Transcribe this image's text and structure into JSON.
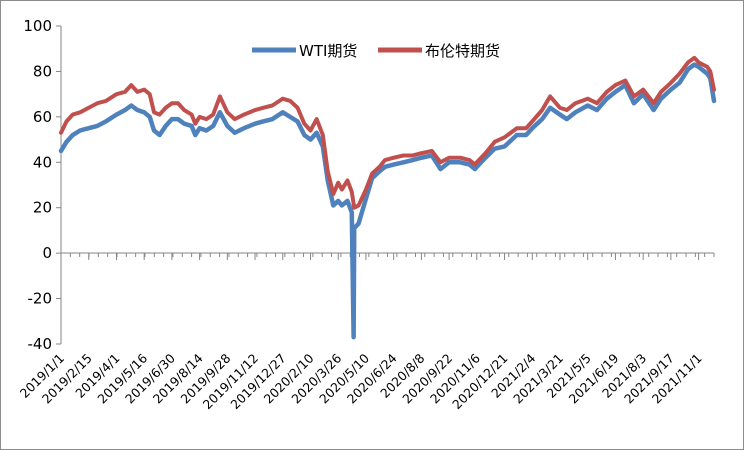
{
  "chart_data": {
    "type": "line",
    "title": "",
    "xlabel": "",
    "ylabel": "",
    "ylim": [
      -40,
      100
    ],
    "yticks": [
      100,
      80,
      60,
      40,
      20,
      0,
      -20,
      -40
    ],
    "ytick_labels": [
      "100",
      "80",
      "60",
      "40",
      "20",
      "0",
      "-20",
      "-40"
    ],
    "x_start": "2019/1/1",
    "x_end": "2021/11/26",
    "xtick_labels": [
      "2019/1/1",
      "2019/2/15",
      "2019/4/1",
      "2019/5/16",
      "2019/6/30",
      "2019/8/14",
      "2019/9/28",
      "2019/11/12",
      "2019/12/27",
      "2020/2/10",
      "2020/3/26",
      "2020/5/10",
      "2020/6/24",
      "2020/8/8",
      "2020/9/22",
      "2020/11/6",
      "2020/12/21",
      "2021/2/4",
      "2021/3/21",
      "2021/5/5",
      "2021/6/19",
      "2021/8/3",
      "2021/9/17",
      "2021/11/1"
    ],
    "grid": false,
    "legend_position": "top",
    "series": [
      {
        "name": "WTI期货",
        "color": "#4f81bd",
        "points": [
          [
            "2019/1/1",
            45
          ],
          [
            "2019/1/10",
            49
          ],
          [
            "2019/1/20",
            52
          ],
          [
            "2019/2/1",
            54
          ],
          [
            "2019/2/15",
            55
          ],
          [
            "2019/3/1",
            56
          ],
          [
            "2019/3/15",
            58
          ],
          [
            "2019/4/1",
            61
          ],
          [
            "2019/4/15",
            63
          ],
          [
            "2019/4/25",
            65
          ],
          [
            "2019/5/5",
            63
          ],
          [
            "2019/5/16",
            62
          ],
          [
            "2019/5/25",
            60
          ],
          [
            "2019/6/1",
            54
          ],
          [
            "2019/6/10",
            52
          ],
          [
            "2019/6/20",
            56
          ],
          [
            "2019/6/30",
            59
          ],
          [
            "2019/7/10",
            59
          ],
          [
            "2019/7/20",
            57
          ],
          [
            "2019/8/1",
            56
          ],
          [
            "2019/8/7",
            52
          ],
          [
            "2019/8/14",
            55
          ],
          [
            "2019/8/25",
            54
          ],
          [
            "2019/9/5",
            56
          ],
          [
            "2019/9/16",
            62
          ],
          [
            "2019/9/28",
            56
          ],
          [
            "2019/10/10",
            53
          ],
          [
            "2019/10/25",
            55
          ],
          [
            "2019/11/12",
            57
          ],
          [
            "2019/11/25",
            58
          ],
          [
            "2019/12/10",
            59
          ],
          [
            "2019/12/27",
            62
          ],
          [
            "2020/1/8",
            60
          ],
          [
            "2020/1/20",
            58
          ],
          [
            "2020/1/31",
            52
          ],
          [
            "2020/2/10",
            50
          ],
          [
            "2020/2/20",
            53
          ],
          [
            "2020/3/1",
            47
          ],
          [
            "2020/3/9",
            32
          ],
          [
            "2020/3/18",
            21
          ],
          [
            "2020/3/26",
            23
          ],
          [
            "2020/4/1",
            21
          ],
          [
            "2020/4/10",
            23
          ],
          [
            "2020/4/17",
            18
          ],
          [
            "2020/4/20",
            -37
          ],
          [
            "2020/4/21",
            11
          ],
          [
            "2020/4/28",
            13
          ],
          [
            "2020/5/10",
            24
          ],
          [
            "2020/5/20",
            33
          ],
          [
            "2020/6/1",
            36
          ],
          [
            "2020/6/10",
            38
          ],
          [
            "2020/6/24",
            39
          ],
          [
            "2020/7/10",
            40
          ],
          [
            "2020/7/25",
            41
          ],
          [
            "2020/8/8",
            42
          ],
          [
            "2020/8/25",
            43
          ],
          [
            "2020/9/8",
            37
          ],
          [
            "2020/9/22",
            40
          ],
          [
            "2020/10/10",
            40
          ],
          [
            "2020/10/25",
            39
          ],
          [
            "2020/11/3",
            37
          ],
          [
            "2020/11/6",
            38
          ],
          [
            "2020/11/20",
            42
          ],
          [
            "2020/12/5",
            46
          ],
          [
            "2020/12/21",
            47
          ],
          [
            "2021/1/10",
            52
          ],
          [
            "2021/1/25",
            52
          ],
          [
            "2021/2/4",
            55
          ],
          [
            "2021/2/20",
            59
          ],
          [
            "2021/3/5",
            64
          ],
          [
            "2021/3/21",
            61
          ],
          [
            "2021/4/1",
            59
          ],
          [
            "2021/4/15",
            62
          ],
          [
            "2021/5/5",
            65
          ],
          [
            "2021/5/20",
            63
          ],
          [
            "2021/6/5",
            68
          ],
          [
            "2021/6/19",
            71
          ],
          [
            "2021/7/5",
            74
          ],
          [
            "2021/7/19",
            66
          ],
          [
            "2021/8/3",
            70
          ],
          [
            "2021/8/20",
            63
          ],
          [
            "2021/9/1",
            68
          ],
          [
            "2021/9/17",
            72
          ],
          [
            "2021/10/1",
            75
          ],
          [
            "2021/10/15",
            81
          ],
          [
            "2021/10/25",
            83
          ],
          [
            "2021/11/1",
            82
          ],
          [
            "2021/11/15",
            79
          ],
          [
            "2021/11/20",
            77
          ],
          [
            "2021/11/26",
            67
          ]
        ]
      },
      {
        "name": "布伦特期货",
        "color": "#c0504d",
        "points": [
          [
            "2019/1/1",
            53
          ],
          [
            "2019/1/10",
            58
          ],
          [
            "2019/1/20",
            61
          ],
          [
            "2019/2/1",
            62
          ],
          [
            "2019/2/15",
            64
          ],
          [
            "2019/3/1",
            66
          ],
          [
            "2019/3/15",
            67
          ],
          [
            "2019/4/1",
            70
          ],
          [
            "2019/4/15",
            71
          ],
          [
            "2019/4/25",
            74
          ],
          [
            "2019/5/5",
            71
          ],
          [
            "2019/5/16",
            72
          ],
          [
            "2019/5/25",
            70
          ],
          [
            "2019/6/1",
            62
          ],
          [
            "2019/6/10",
            61
          ],
          [
            "2019/6/20",
            64
          ],
          [
            "2019/6/30",
            66
          ],
          [
            "2019/7/10",
            66
          ],
          [
            "2019/7/20",
            63
          ],
          [
            "2019/8/1",
            61
          ],
          [
            "2019/8/7",
            57
          ],
          [
            "2019/8/14",
            60
          ],
          [
            "2019/8/25",
            59
          ],
          [
            "2019/9/5",
            61
          ],
          [
            "2019/9/16",
            69
          ],
          [
            "2019/9/28",
            62
          ],
          [
            "2019/10/10",
            59
          ],
          [
            "2019/10/25",
            61
          ],
          [
            "2019/11/12",
            63
          ],
          [
            "2019/11/25",
            64
          ],
          [
            "2019/12/10",
            65
          ],
          [
            "2019/12/27",
            68
          ],
          [
            "2020/1/8",
            67
          ],
          [
            "2020/1/20",
            64
          ],
          [
            "2020/1/31",
            57
          ],
          [
            "2020/2/10",
            54
          ],
          [
            "2020/2/20",
            59
          ],
          [
            "2020/3/1",
            52
          ],
          [
            "2020/3/9",
            36
          ],
          [
            "2020/3/18",
            26
          ],
          [
            "2020/3/26",
            31
          ],
          [
            "2020/4/1",
            28
          ],
          [
            "2020/4/10",
            32
          ],
          [
            "2020/4/17",
            27
          ],
          [
            "2020/4/21",
            20
          ],
          [
            "2020/4/28",
            21
          ],
          [
            "2020/5/10",
            28
          ],
          [
            "2020/5/20",
            35
          ],
          [
            "2020/6/1",
            38
          ],
          [
            "2020/6/10",
            41
          ],
          [
            "2020/6/24",
            42
          ],
          [
            "2020/7/10",
            43
          ],
          [
            "2020/7/25",
            43
          ],
          [
            "2020/8/8",
            44
          ],
          [
            "2020/8/25",
            45
          ],
          [
            "2020/9/8",
            40
          ],
          [
            "2020/9/22",
            42
          ],
          [
            "2020/10/10",
            42
          ],
          [
            "2020/10/25",
            41
          ],
          [
            "2020/11/3",
            39
          ],
          [
            "2020/11/6",
            40
          ],
          [
            "2020/11/20",
            44
          ],
          [
            "2020/12/5",
            49
          ],
          [
            "2020/12/21",
            51
          ],
          [
            "2021/1/10",
            55
          ],
          [
            "2021/1/25",
            55
          ],
          [
            "2021/2/4",
            58
          ],
          [
            "2021/2/20",
            63
          ],
          [
            "2021/3/5",
            69
          ],
          [
            "2021/3/21",
            64
          ],
          [
            "2021/4/1",
            63
          ],
          [
            "2021/4/15",
            66
          ],
          [
            "2021/5/5",
            68
          ],
          [
            "2021/5/20",
            66
          ],
          [
            "2021/6/5",
            71
          ],
          [
            "2021/6/19",
            74
          ],
          [
            "2021/7/5",
            76
          ],
          [
            "2021/7/19",
            69
          ],
          [
            "2021/8/3",
            72
          ],
          [
            "2021/8/20",
            66
          ],
          [
            "2021/9/1",
            71
          ],
          [
            "2021/9/17",
            75
          ],
          [
            "2021/10/1",
            79
          ],
          [
            "2021/10/15",
            84
          ],
          [
            "2021/10/25",
            86
          ],
          [
            "2021/11/1",
            84
          ],
          [
            "2021/11/15",
            82
          ],
          [
            "2021/11/20",
            80
          ],
          [
            "2021/11/26",
            72
          ]
        ]
      }
    ]
  }
}
